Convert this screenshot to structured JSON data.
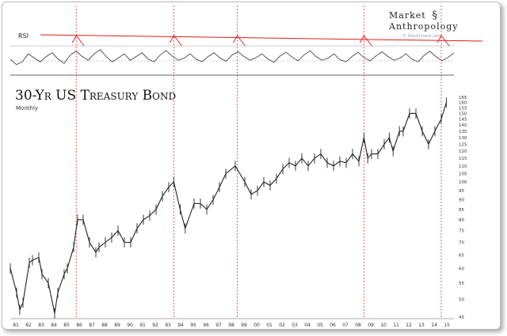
{
  "header": {
    "brand_left": "Market",
    "brand_mark": "§",
    "brand_right": "Anthropology"
  },
  "rsi_panel": {
    "label": "RSI",
    "watermark": "© StockCharts.com"
  },
  "chart_data": {
    "type": "line",
    "title": "30-Yr US Treasury Bond",
    "subtitle": "Monthly",
    "x_tick_labels": [
      "81",
      "82",
      "83",
      "84",
      "85",
      "86",
      "87",
      "88",
      "89",
      "90",
      "91",
      "92",
      "93",
      "94",
      "95",
      "96",
      "97",
      "98",
      "99",
      "00",
      "01",
      "02",
      "03",
      "04",
      "05",
      "06",
      "07",
      "08",
      "09",
      "10",
      "11",
      "12",
      "13",
      "14",
      "15"
    ],
    "y_tick_labels": [
      "165",
      "160",
      "155",
      "150",
      "145",
      "140",
      "135",
      "130",
      "125",
      "120",
      "115",
      "110",
      "105",
      "100",
      "95",
      "90",
      "85",
      "80",
      "75",
      "70",
      "65",
      "60",
      "55",
      "50",
      "45"
    ],
    "ylim": [
      45,
      165
    ],
    "y_scale": "log",
    "series": [
      {
        "x": [
          1981.0,
          1981.5,
          1981.75,
          1982.0,
          1982.5,
          1982.75,
          1983.25,
          1983.5,
          1984.0,
          1984.5,
          1984.75,
          1985.25,
          1985.5,
          1986.0,
          1986.3,
          1986.75,
          1987.25,
          1987.75,
          1988.0,
          1988.5,
          1989.0,
          1989.5,
          1990.0,
          1990.5,
          1991.0,
          1991.5,
          1992.0,
          1992.5,
          1993.0,
          1993.5,
          1993.9,
          1994.4,
          1994.8,
          1995.5,
          1996.0,
          1996.5,
          1997.0,
          1997.5,
          1998.0,
          1998.75,
          1999.5,
          2000.0,
          2000.5,
          2001.0,
          2001.5,
          2002.0,
          2002.5,
          2003.0,
          2003.5,
          2004.0,
          2004.5,
          2005.0,
          2005.5,
          2006.0,
          2006.5,
          2007.0,
          2007.5,
          2008.0,
          2008.5,
          2008.9,
          2009.2,
          2009.5,
          2010.0,
          2010.5,
          2010.9,
          2011.2,
          2011.7,
          2012.0,
          2012.5,
          2013.0,
          2013.5,
          2014.0,
          2014.5,
          2015.0,
          2015.4
        ],
        "values": [
          60,
          52,
          47,
          49,
          62,
          63,
          64,
          58,
          55,
          46,
          52,
          58,
          60,
          68,
          80,
          80,
          70,
          66,
          68,
          70,
          72,
          75,
          70,
          70,
          76,
          80,
          82,
          85,
          92,
          97,
          100,
          85,
          76,
          88,
          88,
          85,
          90,
          97,
          105,
          110,
          100,
          93,
          95,
          100,
          98,
          102,
          108,
          112,
          110,
          115,
          110,
          115,
          118,
          112,
          110,
          113,
          112,
          118,
          113,
          130,
          115,
          118,
          118,
          125,
          130,
          120,
          135,
          135,
          150,
          150,
          135,
          125,
          135,
          145,
          160
        ]
      }
    ],
    "rsi": {
      "values": [
        50,
        40,
        45,
        60,
        52,
        45,
        55,
        62,
        50,
        42,
        58,
        65,
        55,
        48,
        60,
        68,
        55,
        45,
        52,
        60,
        48,
        55,
        62,
        50,
        45,
        58,
        66,
        56,
        48,
        52,
        60,
        50,
        45,
        55,
        62,
        52,
        46,
        58,
        64,
        55,
        48,
        53,
        60,
        50,
        44,
        56,
        63,
        54,
        47,
        58,
        66,
        55,
        48,
        52,
        60,
        49,
        45,
        55,
        63,
        53,
        47,
        56,
        64,
        55,
        48,
        52,
        60,
        50,
        45,
        57,
        65,
        55,
        47,
        53,
        62
      ],
      "ylim": [
        20,
        90
      ],
      "peaks": [
        {
          "label": "86"
        },
        {
          "label": "93"
        },
        {
          "label": "98"
        },
        {
          "label": "08"
        },
        {
          "label": "15"
        }
      ]
    },
    "markers": [
      "86",
      "93",
      "98",
      "08",
      "15"
    ],
    "colors": {
      "trendline": "#e11b1b",
      "marker": "#e11b1b",
      "price": "#222222",
      "grid": "#999999"
    }
  }
}
